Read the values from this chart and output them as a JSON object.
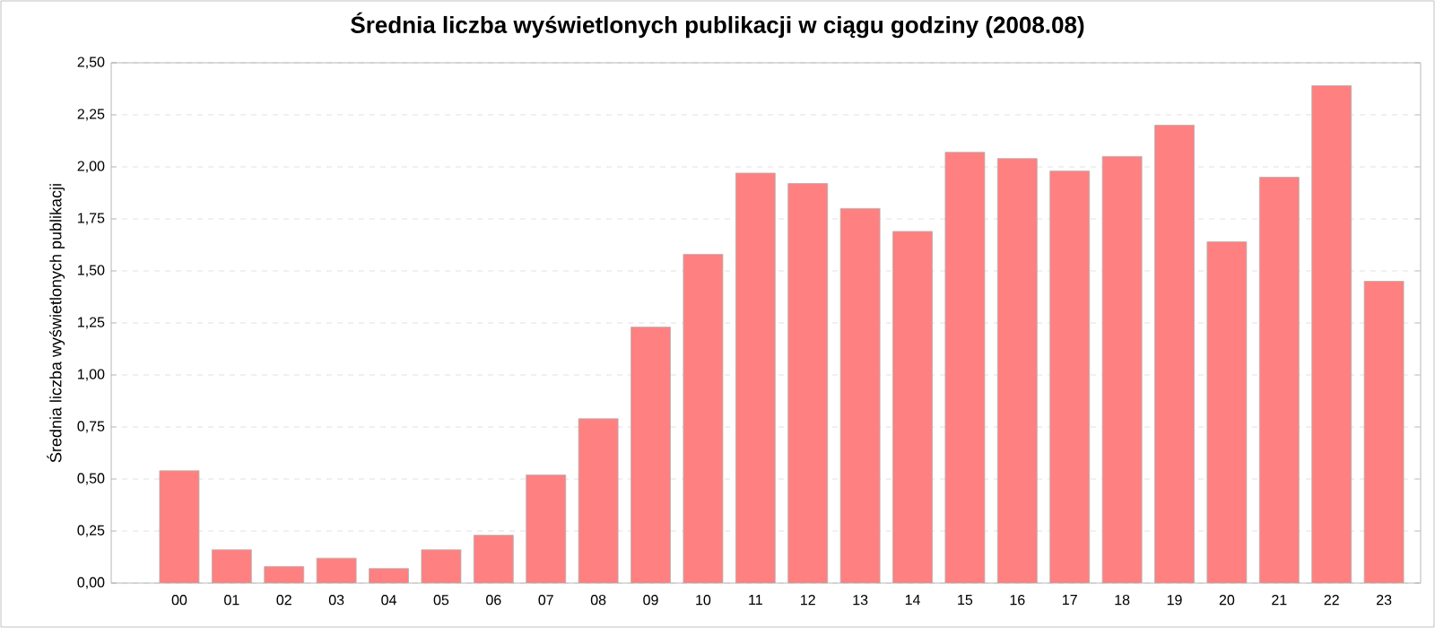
{
  "chart_data": {
    "type": "bar",
    "title": "Średnia liczba wyświetlonych publikacji w ciągu godziny (2008.08)",
    "ylabel": "Średnia liczba wyświetlonych publikacji",
    "categories": [
      "00",
      "01",
      "02",
      "03",
      "04",
      "05",
      "06",
      "07",
      "08",
      "09",
      "10",
      "11",
      "12",
      "13",
      "14",
      "15",
      "16",
      "17",
      "18",
      "19",
      "20",
      "21",
      "22",
      "23"
    ],
    "values": [
      0.54,
      0.16,
      0.08,
      0.12,
      0.07,
      0.16,
      0.23,
      0.52,
      0.79,
      1.23,
      1.58,
      1.97,
      1.92,
      1.8,
      1.69,
      2.07,
      2.04,
      1.98,
      2.05,
      2.2,
      1.64,
      1.95,
      2.39,
      1.45
    ],
    "color": "#ff8080",
    "ylim": [
      0,
      2.5
    ],
    "yticks": [
      {
        "value": 0,
        "label": "0,00"
      },
      {
        "value": 0.25,
        "label": "0,25"
      },
      {
        "value": 0.5,
        "label": "0,50"
      },
      {
        "value": 0.75,
        "label": "0,75"
      },
      {
        "value": 1,
        "label": "1,00"
      },
      {
        "value": 1.25,
        "label": "1,25"
      },
      {
        "value": 1.5,
        "label": "1,50"
      },
      {
        "value": 1.75,
        "label": "1,75"
      },
      {
        "value": 2,
        "label": "2,00"
      },
      {
        "value": 2.25,
        "label": "2,25"
      },
      {
        "value": 2.5,
        "label": "2,50"
      }
    ],
    "grid": "y"
  }
}
